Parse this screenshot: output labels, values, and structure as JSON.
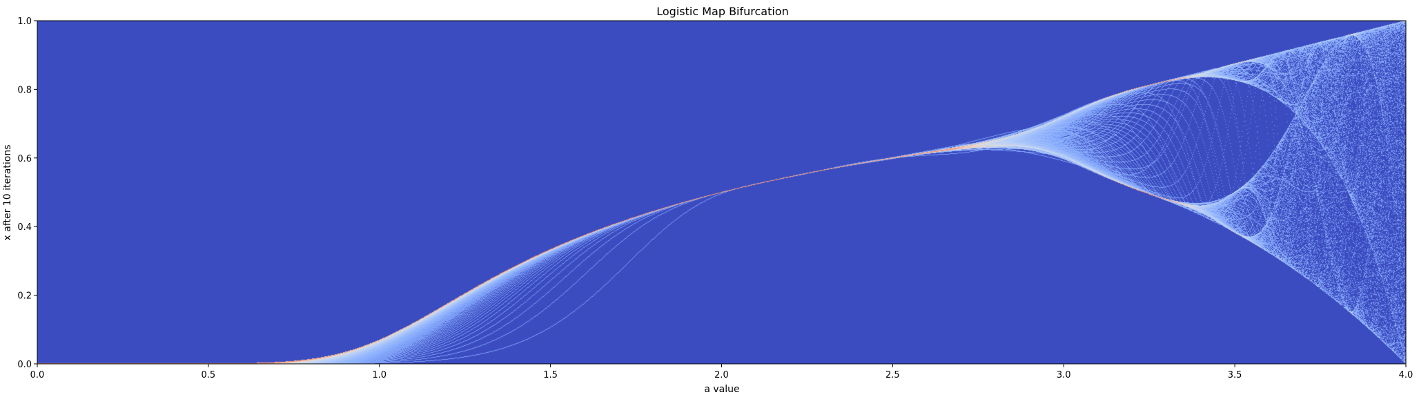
{
  "chart_data": {
    "type": "heatmap",
    "title": "Logistic Map Bifurcation",
    "xlabel": "a value",
    "ylabel": "x after 10 iterations",
    "xlim": [
      0.0,
      4.0
    ],
    "ylim": [
      0.0,
      1.0
    ],
    "x_ticks": [
      "0.0",
      "0.5",
      "1.0",
      "1.5",
      "2.0",
      "2.5",
      "3.0",
      "3.5",
      "4.0"
    ],
    "y_ticks": [
      "0.0",
      "0.2",
      "0.4",
      "0.6",
      "0.8",
      "1.0"
    ],
    "x_tick_values": [
      0,
      0.5,
      1,
      1.5,
      2,
      2.5,
      3,
      3.5,
      4
    ],
    "y_tick_values": [
      0,
      0.2,
      0.4,
      0.6,
      0.8,
      1.0
    ],
    "iterations": 10,
    "colormap": "coolwarm",
    "colors": {
      "background": "#3b4cc0",
      "low_density": "#6788ee",
      "mid_density": "#dddddd",
      "high_density": "#f4987a"
    },
    "grid": false,
    "legend": "none"
  }
}
